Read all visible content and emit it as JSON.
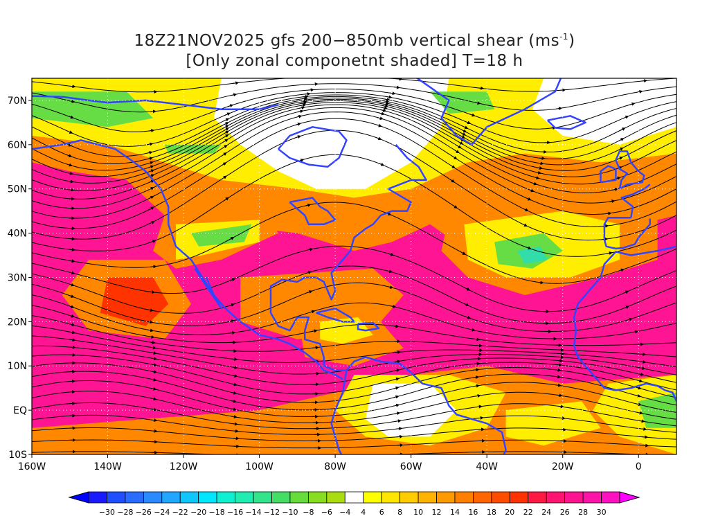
{
  "title": {
    "line1_prefix": "18Z21NOV2025 gfs 200−850mb vertical shear (ms",
    "line1_exp": "-1",
    "line1_suffix": ")",
    "line2": "[Only zonal componetnt shaded] T=18 h"
  },
  "map": {
    "lon_range": [
      -160,
      10
    ],
    "lat_range": [
      -10,
      75
    ],
    "lat_ticks": [
      {
        "value": 70,
        "label": "70N"
      },
      {
        "value": 60,
        "label": "60N"
      },
      {
        "value": 50,
        "label": "50N"
      },
      {
        "value": 40,
        "label": "40N"
      },
      {
        "value": 30,
        "label": "30N"
      },
      {
        "value": 20,
        "label": "20N"
      },
      {
        "value": 10,
        "label": "10N"
      },
      {
        "value": 0,
        "label": "EQ"
      },
      {
        "value": -10,
        "label": "10S"
      }
    ],
    "lon_ticks": [
      {
        "value": -160,
        "label": "160W"
      },
      {
        "value": -140,
        "label": "140W"
      },
      {
        "value": -120,
        "label": "120W"
      },
      {
        "value": -100,
        "label": "100W"
      },
      {
        "value": -80,
        "label": "80W"
      },
      {
        "value": -60,
        "label": "60W"
      },
      {
        "value": -40,
        "label": "40W"
      },
      {
        "value": -20,
        "label": "20W"
      },
      {
        "value": 0,
        "label": "0"
      }
    ],
    "colors": {
      "magenta": "#ff1493",
      "red": "#ff3300",
      "orange": "#ff8800",
      "yellow": "#ffee00",
      "white": "#ffffff",
      "green": "#66dd44",
      "cyan": "#33ddaa",
      "coast": "#3344ff",
      "contour": "#990099",
      "streamline": "#000000"
    }
  },
  "colorbar": {
    "labels": [
      "−30",
      "−28",
      "−26",
      "−24",
      "−22",
      "−20",
      "−18",
      "−16",
      "−14",
      "−12",
      "−10",
      "−8",
      "−6",
      "−4",
      "4",
      "6",
      "8",
      "10",
      "12",
      "14",
      "16",
      "18",
      "20",
      "22",
      "24",
      "26",
      "28",
      "30"
    ],
    "colors": [
      "#1a1aff",
      "#1f4fff",
      "#2a6cff",
      "#2a8aff",
      "#22a6ff",
      "#10c6ff",
      "#00e6ff",
      "#10f0d0",
      "#22ecb0",
      "#33e48a",
      "#44de66",
      "#66dd3a",
      "#88dd22",
      "#aadd11",
      "#ffffff",
      "#ffff00",
      "#ffe600",
      "#ffcc00",
      "#ffb300",
      "#ff9900",
      "#ff8000",
      "#ff6600",
      "#ff4d00",
      "#ff3300",
      "#ff1a44",
      "#ff1470",
      "#ff1490",
      "#ff14a8",
      "#ff10c0"
    ],
    "left_arrow_color": "#0000ff",
    "right_arrow_color": "#ff00ff"
  }
}
